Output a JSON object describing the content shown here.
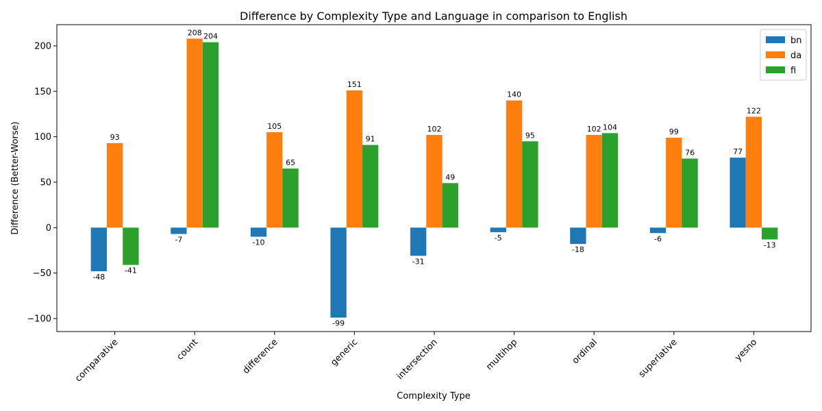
{
  "chart_data": {
    "type": "bar",
    "title": "Difference by Complexity Type and Language in comparison to English",
    "xlabel": "Complexity Type",
    "ylabel": "Difference (Better-Worse)",
    "categories": [
      "comparative",
      "count",
      "difference",
      "generic",
      "intersection",
      "multihop",
      "ordinal",
      "superlative",
      "yesno"
    ],
    "series": [
      {
        "name": "bn",
        "color": "#1f77b4",
        "values": [
          -48,
          -7,
          -10,
          -99,
          -31,
          -5,
          -18,
          -6,
          77
        ]
      },
      {
        "name": "da",
        "color": "#ff7f0e",
        "values": [
          93,
          208,
          105,
          151,
          102,
          140,
          102,
          99,
          122
        ]
      },
      {
        "name": "fi",
        "color": "#2ca02c",
        "values": [
          -41,
          204,
          65,
          91,
          49,
          95,
          104,
          76,
          -13
        ]
      }
    ],
    "ylim": [
      -114.35,
      223.35
    ],
    "yticks": [
      -100,
      -50,
      0,
      50,
      100,
      150,
      200
    ],
    "ytick_labels": [
      "−100",
      "−50",
      "0",
      "50",
      "100",
      "150",
      "200"
    ],
    "legend_position": "top-right",
    "grid": false
  }
}
